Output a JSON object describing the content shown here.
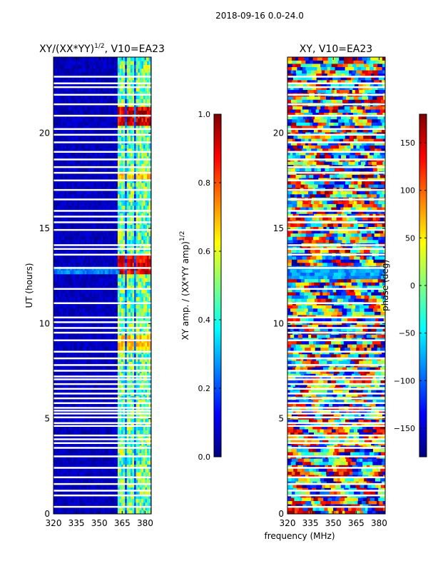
{
  "figure": {
    "suptitle": "2018-09-16 0.0-24.0",
    "shared_xlabel": "frequency (MHz)"
  },
  "chart_data": [
    {
      "type": "heatmap",
      "title_base": "XY/(XX*YY)",
      "title_exp": "1/2",
      "title_suffix": ", V10=EA23",
      "xlabel": "",
      "ylabel": "UT (hours)",
      "xlim": [
        320,
        384
      ],
      "ylim": [
        0,
        24
      ],
      "xticks": [
        320,
        335,
        350,
        365,
        380
      ],
      "yticks": [
        0,
        5,
        10,
        15,
        20
      ],
      "colorbar": {
        "label": "XY amp. / (XX*YY amp)",
        "label_exp": "1/2",
        "range": [
          0.0,
          1.0
        ],
        "ticks": [
          0.0,
          0.2,
          0.4,
          0.6,
          0.8,
          1.0
        ],
        "tick_labels": [
          "0.0",
          "0.2",
          "0.4",
          "0.6",
          "0.8",
          "1.0"
        ],
        "colormap": "jet"
      },
      "rfi_bands_mhz": [
        363.5,
        369.5,
        375.5,
        380.5
      ],
      "flagged_hours": [
        0.35,
        0.95,
        1.2,
        1.55,
        1.9,
        2.4,
        3.0,
        3.45,
        3.7,
        3.9,
        4.1,
        4.6,
        4.75,
        5.05,
        5.25,
        5.4,
        5.55,
        5.8,
        6.05,
        6.3,
        6.55,
        6.8,
        7.05,
        7.2,
        7.5,
        7.8,
        8.15,
        8.5,
        9.1,
        9.5,
        9.75,
        10.05,
        10.3,
        11.05,
        11.8,
        12.9,
        13.6,
        13.9,
        14.1,
        14.9,
        15.3,
        15.6,
        15.9,
        16.5,
        17.0,
        17.5,
        17.9,
        18.2,
        18.6,
        19.0,
        19.5,
        19.9,
        20.2,
        20.9,
        21.5,
        22.0,
        22.4,
        22.6,
        22.95
      ]
    },
    {
      "type": "heatmap",
      "title": "XY, V10=EA23",
      "xlabel": "frequency (MHz)",
      "ylabel": "",
      "xlim": [
        320,
        384
      ],
      "ylim": [
        0,
        24
      ],
      "xticks": [
        320,
        335,
        350,
        365,
        380
      ],
      "yticks": [
        0,
        5,
        10,
        15,
        20
      ],
      "colorbar": {
        "label": "phase (deg)",
        "range": [
          -180,
          180
        ],
        "ticks": [
          -150,
          -100,
          -50,
          0,
          50,
          100,
          150
        ],
        "tick_labels": [
          "−150",
          "−100",
          "−50",
          "0",
          "50",
          "100",
          "150"
        ],
        "colormap": "jet"
      },
      "flagged_hours": [
        0.35,
        0.95,
        1.2,
        1.55,
        1.9,
        2.4,
        3.0,
        3.45,
        3.7,
        3.9,
        4.1,
        4.6,
        4.75,
        5.05,
        5.25,
        5.4,
        5.55,
        5.8,
        6.05,
        6.3,
        6.55,
        6.8,
        7.05,
        7.2,
        7.5,
        7.8,
        8.15,
        8.5,
        9.1,
        9.5,
        9.75,
        10.05,
        10.3,
        11.05,
        11.8,
        12.9,
        13.6,
        13.9,
        14.1,
        14.9,
        15.3,
        15.6,
        15.9,
        16.5,
        17.0,
        17.5,
        17.9,
        18.2,
        18.6,
        19.0,
        19.5,
        19.9,
        20.2,
        20.9,
        21.5,
        22.0,
        22.4,
        22.6,
        22.95
      ]
    }
  ]
}
